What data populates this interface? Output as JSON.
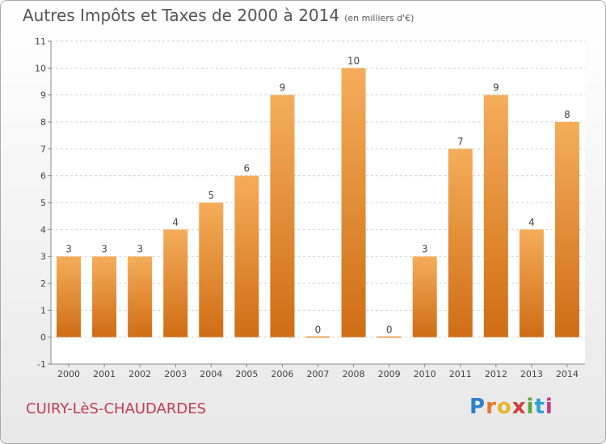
{
  "title": "Autres Impôts et Taxes de 2000 à 2014",
  "unit_label": "(en milliers d'€)",
  "commune": "CUIRY-LèS-CHAUDARDES",
  "logo": {
    "letters": [
      "P",
      "r",
      "o",
      "x",
      "i",
      "t",
      "i"
    ],
    "colors": [
      "#2f7fcf",
      "#e8762b",
      "#e8b52b",
      "#d23c3c",
      "#5aa83a",
      "#2f9fcf",
      "#c23b8c"
    ]
  },
  "colors": {
    "bar": "#f0952f",
    "bar_light": "#f5ad5a",
    "bar_dark": "#cf6d15"
  },
  "chart_data": {
    "type": "bar",
    "title": "Autres Impôts et Taxes de 2000 à 2014",
    "categories": [
      "2000",
      "2001",
      "2002",
      "2003",
      "2004",
      "2005",
      "2006",
      "2007",
      "2008",
      "2009",
      "2010",
      "2011",
      "2012",
      "2013",
      "2014"
    ],
    "values": [
      3,
      3,
      3,
      4,
      5,
      6,
      9,
      0,
      10,
      0,
      3,
      7,
      9,
      4,
      8
    ],
    "data_labels": [
      "3",
      "3",
      "3",
      "4",
      "5",
      "6",
      "9",
      "0",
      "10",
      "0",
      "3",
      "7",
      "9",
      "4",
      "8"
    ],
    "yticks": [
      "-1",
      "0",
      "1",
      "2",
      "3",
      "4",
      "5",
      "6",
      "7",
      "8",
      "9",
      "10",
      "11"
    ],
    "ylim": [
      -1,
      11
    ],
    "grid": true
  }
}
